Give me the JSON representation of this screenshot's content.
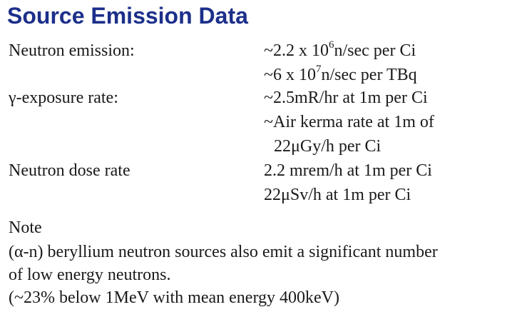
{
  "title": "Source Emission Data",
  "rows": [
    {
      "label": "Neutron emission:",
      "values": [
        {
          "pre": "~2.2 x 10",
          "sup": "6",
          "post": "n/sec per Ci"
        },
        {
          "pre": "~6 x 10",
          "sup": "7",
          "post": "n/sec per TBq"
        }
      ]
    },
    {
      "label": "γ-exposure rate:",
      "values": [
        {
          "text": "~2.5mR/hr at 1m per Ci"
        },
        {
          "text": "~Air kerma rate at 1m of"
        },
        {
          "text": "22μGy/h per Ci"
        }
      ]
    },
    {
      "label": "Neutron dose rate",
      "values": [
        {
          "text": "2.2 mrem/h at 1m per Ci"
        },
        {
          "text": "22μSv/h at 1m per Ci"
        }
      ]
    }
  ],
  "note": {
    "heading": "Note",
    "lines": [
      "(α-n) beryllium neutron sources also emit a significant number",
      "of low energy neutrons.",
      "(~23% below 1MeV with mean energy 400keV)"
    ]
  }
}
